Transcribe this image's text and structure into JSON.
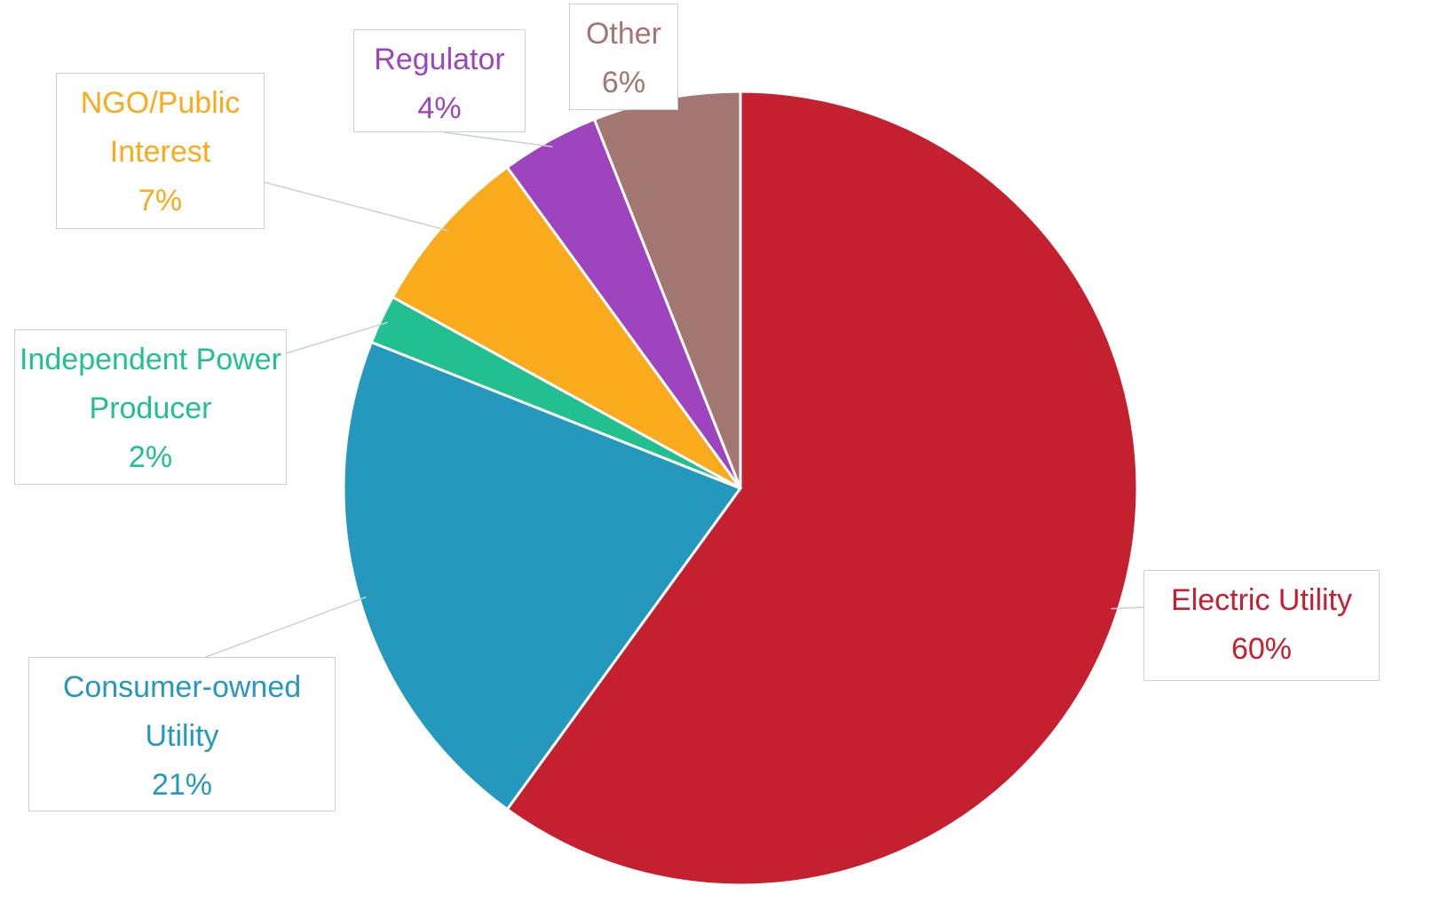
{
  "chart_data": {
    "type": "pie",
    "categories": [
      "Electric Utility",
      "Consumer-owned Utility",
      "Independent Power Producer",
      "NGO/Public Interest",
      "Regulator",
      "Other"
    ],
    "values": [
      60,
      21,
      2,
      7,
      4,
      6
    ],
    "value_labels": [
      "60%",
      "21%",
      "2%",
      "7%",
      "4%",
      "6%"
    ],
    "colors": [
      "#c5202f",
      "#2499bd",
      "#22c090",
      "#f9ab1b",
      "#9e44bf",
      "#a47672"
    ],
    "start_angle": 90,
    "direction": "clockwise"
  }
}
